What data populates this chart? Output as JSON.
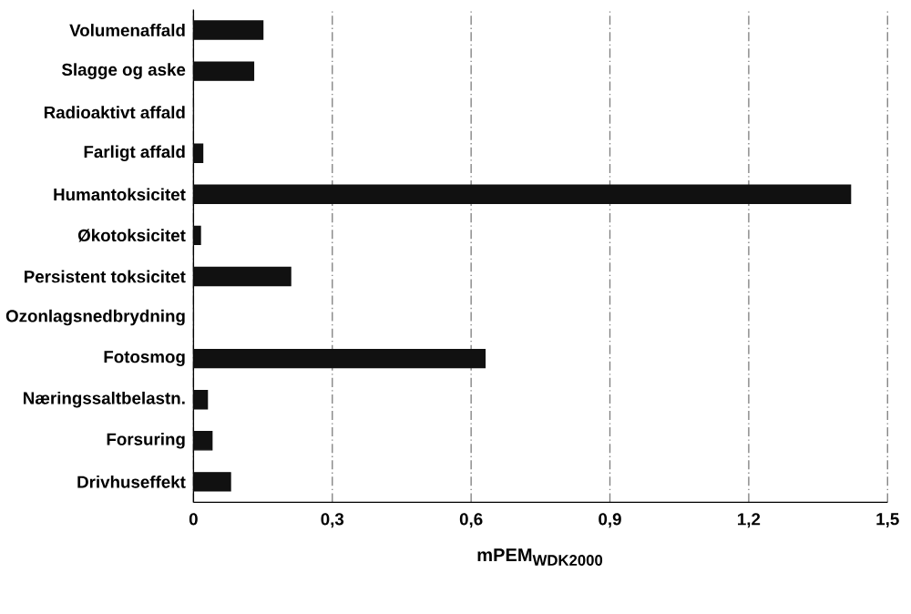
{
  "chart_data": {
    "type": "bar",
    "orientation": "horizontal",
    "xlabel": "mPEM$_{WDK2000}$",
    "categories": [
      "Volumenaffald",
      "Slagge og aske",
      "Radioaktivt affald",
      "Farligt affald",
      "Humantoksicitet",
      "Økotoksicitet",
      "Persistent toksicitet",
      "Ozonlagsnedbrydning",
      "Fotosmog",
      "Næringssaltbelastn.",
      "Forsuring",
      "Drivhuseffekt"
    ],
    "values": [
      0.15,
      0.13,
      0,
      0.02,
      1.42,
      0.015,
      0.21,
      0,
      0.63,
      0.03,
      0.04,
      0.08
    ],
    "color": "#111111",
    "xlim": [
      0,
      1.5
    ],
    "xticks": [
      0,
      {
        "value": 0.3,
        "label": "0,3"
      },
      {
        "value": 0.6,
        "label": "0,6"
      },
      {
        "value": 0.9,
        "label": "0,9"
      },
      {
        "value": 1.2,
        "label": "1,2"
      },
      {
        "value": 1.5,
        "label": "1,5"
      }
    ],
    "grid": "x"
  }
}
